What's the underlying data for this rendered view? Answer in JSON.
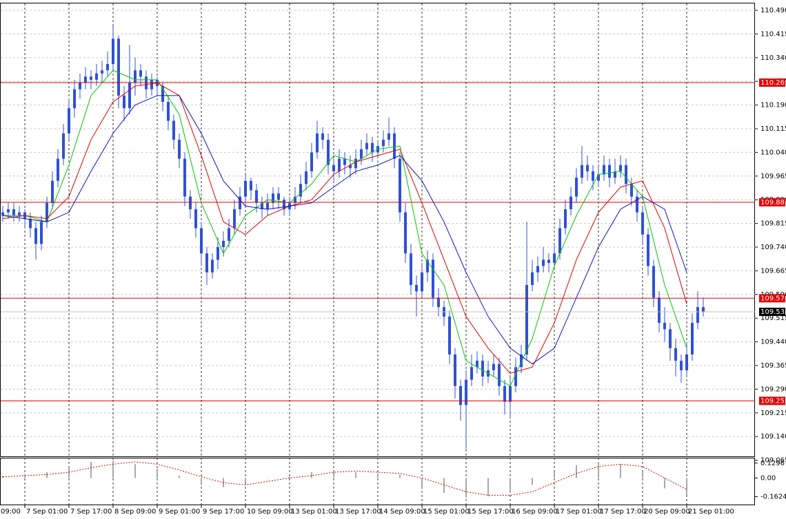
{
  "chart_data": {
    "type": "candlestick",
    "candle_color": "#2f50d8",
    "grid": true,
    "ylim": [
      109.05,
      110.51
    ],
    "yticks": [
      {
        "value": 110.49,
        "label": "110.490"
      },
      110.415,
      {
        "value": 110.34,
        "label": "110.340"
      },
      110.265,
      {
        "value": 110.19,
        "label": "110.190"
      },
      110.115,
      {
        "value": 110.04,
        "label": "110.040"
      },
      109.965,
      {
        "value": 109.89,
        "label": "109.890"
      },
      109.815,
      {
        "value": 109.74,
        "label": "109.740"
      },
      109.665,
      {
        "value": 109.59,
        "label": "109.590"
      },
      109.515,
      {
        "value": 109.44,
        "label": "109.440"
      },
      109.365,
      {
        "value": 109.29,
        "label": "109.290"
      },
      109.215,
      {
        "value": 109.14,
        "label": "109.140"
      },
      109.065
    ],
    "xlim": [
      -0.5,
      136.375
    ],
    "xticks": [
      {
        "value": -4,
        "label": "09:00"
      },
      {
        "value": 4,
        "label": "7 Sep 01:00"
      },
      {
        "value": 12,
        "label": "7 Sep 17:00"
      },
      {
        "value": 20,
        "label": "8 Sep 09:00"
      },
      {
        "value": 28,
        "label": "9 Sep 01:00"
      },
      {
        "value": 36,
        "label": "9 Sep 17:00"
      },
      {
        "value": 44,
        "label": "10 Sep 09:00"
      },
      {
        "value": 52,
        "label": "13 Sep 01:00"
      },
      {
        "value": 60,
        "label": "13 Sep 17:00"
      },
      {
        "value": 68,
        "label": "14 Sep 09:00"
      },
      {
        "value": 76,
        "label": "15 Sep 01:00"
      },
      {
        "value": 84,
        "label": "15 Sep 17:00"
      },
      {
        "value": 92,
        "label": "16 Sep 09:00"
      },
      {
        "value": 100,
        "label": "17 Sep 01:00"
      },
      {
        "value": 108,
        "label": "17 Sep 17:00"
      },
      {
        "value": 116,
        "label": "20 Sep 09:00"
      },
      {
        "value": 124,
        "label": "21 Sep 01:00"
      }
    ],
    "levels": [
      110.261,
      109.882,
      109.578,
      109.253
    ],
    "level_color": "#e00000",
    "last_price": 109.535,
    "candles": [
      [
        109.84,
        109.87,
        109.82,
        109.85
      ],
      [
        109.85,
        109.88,
        109.83,
        109.86
      ],
      [
        109.86,
        109.88,
        109.82,
        109.84
      ],
      [
        109.84,
        109.87,
        109.82,
        109.85
      ],
      [
        109.85,
        109.86,
        109.8,
        109.83
      ],
      [
        109.83,
        109.85,
        109.77,
        109.8
      ],
      [
        109.8,
        109.82,
        109.7,
        109.75
      ],
      [
        109.75,
        109.84,
        109.73,
        109.82
      ],
      [
        109.82,
        109.9,
        109.8,
        109.88
      ],
      [
        109.88,
        109.98,
        109.86,
        109.95
      ],
      [
        109.95,
        110.05,
        109.93,
        110.02
      ],
      [
        110.02,
        110.13,
        110.0,
        110.1
      ],
      [
        110.1,
        110.21,
        110.08,
        110.18
      ],
      [
        110.18,
        110.27,
        110.15,
        110.24
      ],
      [
        110.24,
        110.29,
        110.21,
        110.26
      ],
      [
        110.26,
        110.31,
        110.24,
        110.28
      ],
      [
        110.28,
        110.3,
        110.24,
        110.27
      ],
      [
        110.27,
        110.32,
        110.25,
        110.29
      ],
      [
        110.29,
        110.33,
        110.26,
        110.3
      ],
      [
        110.3,
        110.36,
        110.28,
        110.32
      ],
      [
        110.32,
        110.44,
        110.3,
        110.4
      ],
      [
        110.4,
        110.41,
        110.18,
        110.22
      ],
      [
        110.22,
        110.25,
        110.14,
        110.18
      ],
      [
        110.18,
        110.38,
        110.16,
        110.26
      ],
      [
        110.26,
        110.34,
        110.22,
        110.3
      ],
      [
        110.3,
        110.32,
        110.25,
        110.28
      ],
      [
        110.28,
        110.3,
        110.21,
        110.24
      ],
      [
        110.24,
        110.29,
        110.22,
        110.27
      ],
      [
        110.27,
        110.28,
        110.22,
        110.25
      ],
      [
        110.25,
        110.26,
        110.17,
        110.2
      ],
      [
        110.2,
        110.22,
        110.11,
        110.14
      ],
      [
        110.14,
        110.16,
        110.05,
        110.08
      ],
      [
        110.08,
        110.1,
        109.99,
        110.02
      ],
      [
        110.02,
        110.04,
        109.87,
        109.9
      ],
      [
        109.9,
        109.92,
        109.83,
        109.86
      ],
      [
        109.86,
        109.88,
        109.77,
        109.8
      ],
      [
        109.8,
        109.82,
        109.68,
        109.72
      ],
      [
        109.72,
        109.74,
        109.62,
        109.66
      ],
      [
        109.66,
        109.72,
        109.64,
        109.7
      ],
      [
        109.7,
        109.77,
        109.67,
        109.74
      ],
      [
        109.74,
        109.79,
        109.71,
        109.76
      ],
      [
        109.76,
        109.83,
        109.74,
        109.8
      ],
      [
        109.8,
        109.89,
        109.78,
        109.86
      ],
      [
        109.86,
        109.93,
        109.84,
        109.9
      ],
      [
        109.9,
        109.97,
        109.87,
        109.95
      ],
      [
        109.95,
        109.96,
        109.89,
        109.92
      ],
      [
        109.92,
        109.94,
        109.85,
        109.88
      ],
      [
        109.88,
        109.9,
        109.83,
        109.86
      ],
      [
        109.86,
        109.91,
        109.84,
        109.88
      ],
      [
        109.88,
        109.93,
        109.86,
        109.91
      ],
      [
        109.91,
        109.93,
        109.86,
        109.89
      ],
      [
        109.89,
        109.9,
        109.84,
        109.86
      ],
      [
        109.86,
        109.9,
        109.84,
        109.88
      ],
      [
        109.88,
        109.93,
        109.86,
        109.9
      ],
      [
        109.9,
        109.97,
        109.88,
        109.94
      ],
      [
        109.94,
        110.01,
        109.92,
        109.98
      ],
      [
        109.98,
        110.07,
        109.96,
        110.04
      ],
      [
        110.04,
        110.14,
        110.02,
        110.1
      ],
      [
        110.1,
        110.12,
        110.05,
        110.08
      ],
      [
        110.08,
        110.1,
        109.97,
        110.0
      ],
      [
        110.0,
        110.02,
        109.95,
        109.98
      ],
      [
        109.98,
        110.05,
        109.96,
        110.02
      ],
      [
        110.02,
        110.04,
        109.97,
        110.0
      ],
      [
        110.0,
        110.03,
        109.96,
        109.99
      ],
      [
        109.99,
        110.05,
        109.97,
        110.02
      ],
      [
        110.02,
        110.08,
        110.0,
        110.05
      ],
      [
        110.05,
        110.1,
        110.03,
        110.07
      ],
      [
        110.07,
        110.09,
        110.01,
        110.04
      ],
      [
        110.04,
        110.08,
        110.02,
        110.06
      ],
      [
        110.06,
        110.11,
        110.04,
        110.08
      ],
      [
        110.08,
        110.15,
        110.06,
        110.1
      ],
      [
        110.1,
        110.12,
        109.99,
        110.02
      ],
      [
        110.02,
        110.04,
        109.82,
        109.85
      ],
      [
        109.85,
        109.88,
        109.69,
        109.72
      ],
      [
        109.72,
        109.75,
        109.59,
        109.62
      ],
      [
        109.62,
        109.65,
        109.52,
        109.6
      ],
      [
        109.6,
        109.69,
        109.58,
        109.66
      ],
      [
        109.66,
        109.73,
        109.63,
        109.7
      ],
      [
        109.7,
        109.72,
        109.55,
        109.58
      ],
      [
        109.58,
        109.61,
        109.52,
        109.55
      ],
      [
        109.55,
        109.57,
        109.49,
        109.52
      ],
      [
        109.52,
        109.54,
        109.37,
        109.4
      ],
      [
        109.4,
        109.42,
        109.26,
        109.3
      ],
      [
        109.3,
        109.32,
        109.19,
        109.24
      ],
      [
        109.24,
        109.35,
        109.1,
        109.32
      ],
      [
        109.32,
        109.4,
        109.3,
        109.36
      ],
      [
        109.36,
        109.41,
        109.34,
        109.38
      ],
      [
        109.38,
        109.4,
        109.3,
        109.33
      ],
      [
        109.33,
        109.38,
        109.31,
        109.35
      ],
      [
        109.35,
        109.4,
        109.33,
        109.37
      ],
      [
        109.37,
        109.39,
        109.27,
        109.3
      ],
      [
        109.3,
        109.32,
        109.21,
        109.25
      ],
      [
        109.25,
        109.33,
        109.2,
        109.3
      ],
      [
        109.3,
        109.39,
        109.28,
        109.36
      ],
      [
        109.36,
        109.43,
        109.34,
        109.4
      ],
      [
        109.4,
        109.82,
        109.38,
        109.62
      ],
      [
        109.62,
        109.7,
        109.6,
        109.66
      ],
      [
        109.66,
        109.71,
        109.63,
        109.68
      ],
      [
        109.68,
        109.74,
        109.66,
        109.7
      ],
      [
        109.7,
        109.72,
        109.66,
        109.69
      ],
      [
        109.69,
        109.75,
        109.67,
        109.72
      ],
      [
        109.72,
        109.83,
        109.7,
        109.8
      ],
      [
        109.8,
        109.89,
        109.78,
        109.86
      ],
      [
        109.86,
        109.93,
        109.84,
        109.9
      ],
      [
        109.9,
        109.99,
        109.88,
        109.96
      ],
      [
        109.96,
        110.06,
        109.94,
        110.0
      ],
      [
        110.0,
        110.03,
        109.95,
        109.98
      ],
      [
        109.98,
        110.0,
        109.92,
        109.95
      ],
      [
        109.95,
        110.0,
        109.93,
        109.97
      ],
      [
        109.97,
        110.03,
        109.95,
        110.0
      ],
      [
        110.0,
        110.02,
        109.93,
        109.96
      ],
      [
        109.96,
        110.02,
        109.94,
        109.98
      ],
      [
        109.98,
        110.03,
        109.96,
        110.0
      ],
      [
        110.0,
        110.02,
        109.91,
        109.94
      ],
      [
        109.94,
        109.96,
        109.87,
        109.9
      ],
      [
        109.9,
        109.92,
        109.82,
        109.85
      ],
      [
        109.85,
        109.87,
        109.75,
        109.78
      ],
      [
        109.78,
        109.8,
        109.65,
        109.68
      ],
      [
        109.68,
        109.7,
        109.55,
        109.58
      ],
      [
        109.58,
        109.6,
        109.47,
        109.5
      ],
      [
        109.5,
        109.55,
        109.44,
        109.48
      ],
      [
        109.48,
        109.5,
        109.38,
        109.42
      ],
      [
        109.42,
        109.45,
        109.33,
        109.38
      ],
      [
        109.38,
        109.4,
        109.31,
        109.35
      ],
      [
        109.35,
        109.44,
        109.33,
        109.4
      ],
      [
        109.4,
        109.53,
        109.38,
        109.5
      ],
      [
        109.5,
        109.6,
        109.48,
        109.55
      ],
      [
        109.55,
        109.58,
        109.52,
        109.535
      ]
    ],
    "x": [
      0,
      4,
      8,
      12,
      16,
      20,
      24,
      28,
      32,
      36,
      40,
      44,
      48,
      52,
      56,
      60,
      64,
      68,
      72,
      76,
      80,
      84,
      88,
      92,
      96,
      100,
      104,
      108,
      112,
      116,
      120,
      124
    ],
    "series": [
      {
        "color": "#00c800",
        "values": [
          109.84,
          109.84,
          109.82,
          110.0,
          110.22,
          110.3,
          110.27,
          110.27,
          110.16,
          109.88,
          109.72,
          109.84,
          109.89,
          109.88,
          109.94,
          110.03,
          110.01,
          110.05,
          110.06,
          109.72,
          109.62,
          109.38,
          109.34,
          109.3,
          109.45,
          109.68,
          109.84,
          109.97,
          109.98,
          109.9,
          109.62,
          109.42
        ]
      },
      {
        "color": "#e00000",
        "values": [
          109.83,
          109.84,
          109.83,
          109.9,
          110.08,
          110.2,
          110.25,
          110.26,
          110.22,
          110.03,
          109.82,
          109.78,
          109.84,
          109.87,
          109.89,
          109.97,
          110.01,
          110.03,
          110.05,
          109.88,
          109.7,
          109.52,
          109.42,
          109.34,
          109.36,
          109.5,
          109.7,
          109.85,
          109.93,
          109.95,
          109.8,
          109.56
        ]
      },
      {
        "color": "#1010c0",
        "values": [
          109.84,
          109.83,
          109.82,
          109.85,
          109.98,
          110.1,
          110.19,
          110.22,
          110.22,
          110.1,
          109.95,
          109.87,
          109.86,
          109.87,
          109.88,
          109.93,
          109.98,
          110.0,
          110.03,
          109.95,
          109.82,
          109.66,
          109.52,
          109.42,
          109.37,
          109.42,
          109.58,
          109.74,
          109.86,
          109.9,
          109.86,
          109.66
        ]
      }
    ],
    "oscillator": {
      "ylim": [
        -0.231,
        0.17
      ],
      "yticks": [
        0.1296,
        {
          "value": 0,
          "label": "0.00"
        },
        -0.1624
      ],
      "bar_color": "#a8a8a8",
      "signal_color": "#e00000",
      "values": [
        0.02,
        0.03,
        0.05,
        0.1,
        0.14,
        0.15,
        0.12,
        0.08,
        0.02,
        -0.05,
        -0.08,
        -0.04,
        0.0,
        0.01,
        0.05,
        0.07,
        0.05,
        0.04,
        0.03,
        -0.08,
        -0.13,
        -0.17,
        -0.16,
        -0.13,
        -0.06,
        0.05,
        0.11,
        0.14,
        0.12,
        0.06,
        -0.09,
        -0.15
      ],
      "signal": [
        0.01,
        0.02,
        0.03,
        0.05,
        0.09,
        0.12,
        0.14,
        0.12,
        0.07,
        0.01,
        -0.04,
        -0.06,
        -0.03,
        0.0,
        0.02,
        0.05,
        0.06,
        0.05,
        0.04,
        0.0,
        -0.06,
        -0.12,
        -0.15,
        -0.15,
        -0.12,
        -0.04,
        0.04,
        0.1,
        0.12,
        0.1,
        0.0,
        -0.1
      ]
    }
  }
}
